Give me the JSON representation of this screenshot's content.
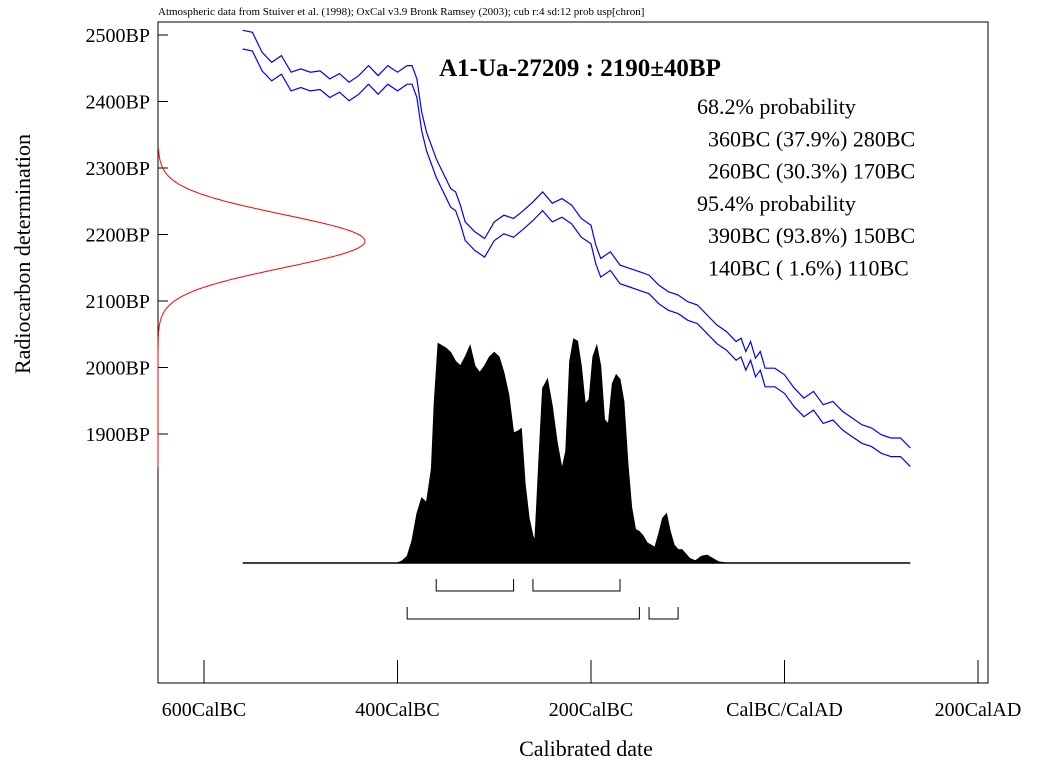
{
  "chart_data": {
    "type": "area",
    "source_note": "Atmospheric data from Stuiver et al. (1998); OxCal v3.9 Bronk Ramsey (2003); cub r:4 sd:12 prob usp[chron]",
    "title": "A1-Ua-27209 : 2190±40BP",
    "xlabel": "Calibrated date",
    "ylabel": "Radiocarbon determination",
    "x_ticks": [
      {
        "value": -600,
        "label": "600CalBC"
      },
      {
        "value": -400,
        "label": "400CalBC"
      },
      {
        "value": -200,
        "label": "200CalBC"
      },
      {
        "value": 0,
        "label": "CalBC/CalAD"
      },
      {
        "value": 200,
        "label": "200CalAD"
      }
    ],
    "y_ticks": [
      {
        "value": 2500,
        "label": "2500BP"
      },
      {
        "value": 2400,
        "label": "2400BP"
      },
      {
        "value": 2300,
        "label": "2300BP"
      },
      {
        "value": 2200,
        "label": "2200BP"
      },
      {
        "value": 2100,
        "label": "2100BP"
      },
      {
        "value": 2000,
        "label": "2000BP"
      },
      {
        "value": 1900,
        "label": "1900BP"
      }
    ],
    "xlim": [
      -650,
      200
    ],
    "ylim": [
      1570,
      2505
    ],
    "colors": {
      "calibration_curve": "#0000ff",
      "measurement": "#ff0000",
      "posterior": "#000000"
    },
    "measurement": {
      "mean": 2190,
      "sd": 40
    },
    "probability_text": [
      "68.2% probability",
      "  360BC (37.9%) 280BC",
      "  260BC (30.3%) 170BC",
      "95.4% probability",
      "  390BC (93.8%) 150BC",
      "  140BC ( 1.6%) 110BC"
    ],
    "ranges_68": [
      [
        -360,
        -280
      ],
      [
        -260,
        -170
      ]
    ],
    "ranges_95": [
      [
        -390,
        -150
      ],
      [
        -140,
        -110
      ]
    ],
    "calibration_curve_mid": [
      [
        -560,
        2493
      ],
      [
        -550,
        2490
      ],
      [
        -540,
        2460
      ],
      [
        -530,
        2445
      ],
      [
        -520,
        2455
      ],
      [
        -510,
        2430
      ],
      [
        -500,
        2435
      ],
      [
        -490,
        2430
      ],
      [
        -480,
        2432
      ],
      [
        -470,
        2420
      ],
      [
        -460,
        2428
      ],
      [
        -450,
        2415
      ],
      [
        -440,
        2425
      ],
      [
        -430,
        2440
      ],
      [
        -420,
        2425
      ],
      [
        -410,
        2440
      ],
      [
        -400,
        2430
      ],
      [
        -390,
        2440
      ],
      [
        -385,
        2440
      ],
      [
        -380,
        2420
      ],
      [
        -375,
        2370
      ],
      [
        -370,
        2340
      ],
      [
        -365,
        2320
      ],
      [
        -360,
        2300
      ],
      [
        -355,
        2285
      ],
      [
        -350,
        2270
      ],
      [
        -345,
        2255
      ],
      [
        -340,
        2250
      ],
      [
        -335,
        2230
      ],
      [
        -330,
        2205
      ],
      [
        -320,
        2190
      ],
      [
        -310,
        2180
      ],
      [
        -300,
        2205
      ],
      [
        -290,
        2215
      ],
      [
        -280,
        2210
      ],
      [
        -270,
        2222
      ],
      [
        -260,
        2235
      ],
      [
        -250,
        2250
      ],
      [
        -240,
        2233
      ],
      [
        -230,
        2240
      ],
      [
        -220,
        2230
      ],
      [
        -210,
        2210
      ],
      [
        -200,
        2200
      ],
      [
        -195,
        2170
      ],
      [
        -190,
        2150
      ],
      [
        -180,
        2160
      ],
      [
        -170,
        2140
      ],
      [
        -160,
        2135
      ],
      [
        -150,
        2130
      ],
      [
        -140,
        2125
      ],
      [
        -130,
        2110
      ],
      [
        -120,
        2100
      ],
      [
        -110,
        2095
      ],
      [
        -100,
        2085
      ],
      [
        -90,
        2080
      ],
      [
        -80,
        2065
      ],
      [
        -70,
        2050
      ],
      [
        -60,
        2040
      ],
      [
        -50,
        2025
      ],
      [
        -45,
        2030
      ],
      [
        -40,
        2010
      ],
      [
        -35,
        2025
      ],
      [
        -30,
        2000
      ],
      [
        -25,
        2010
      ],
      [
        -20,
        1985
      ],
      [
        -10,
        1985
      ],
      [
        0,
        1975
      ],
      [
        10,
        1955
      ],
      [
        20,
        1940
      ],
      [
        30,
        1950
      ],
      [
        40,
        1930
      ],
      [
        50,
        1935
      ],
      [
        60,
        1920
      ],
      [
        70,
        1910
      ],
      [
        80,
        1900
      ],
      [
        90,
        1895
      ],
      [
        100,
        1885
      ],
      [
        110,
        1880
      ],
      [
        120,
        1880
      ],
      [
        130,
        1865
      ]
    ],
    "calibration_curve_halfwidth": 14,
    "posterior": [
      [
        -560,
        0
      ],
      [
        -400,
        0
      ],
      [
        -395,
        0.01
      ],
      [
        -390,
        0.03
      ],
      [
        -385,
        0.1
      ],
      [
        -380,
        0.22
      ],
      [
        -375,
        0.29
      ],
      [
        -370,
        0.27
      ],
      [
        -365,
        0.42
      ],
      [
        -362,
        0.72
      ],
      [
        -358,
        0.98
      ],
      [
        -350,
        0.96
      ],
      [
        -345,
        0.94
      ],
      [
        -340,
        0.9
      ],
      [
        -335,
        0.88
      ],
      [
        -330,
        0.92
      ],
      [
        -325,
        0.97
      ],
      [
        -320,
        0.88
      ],
      [
        -315,
        0.85
      ],
      [
        -310,
        0.88
      ],
      [
        -305,
        0.92
      ],
      [
        -300,
        0.94
      ],
      [
        -295,
        0.92
      ],
      [
        -290,
        0.85
      ],
      [
        -285,
        0.75
      ],
      [
        -280,
        0.58
      ],
      [
        -275,
        0.59
      ],
      [
        -272,
        0.6
      ],
      [
        -268,
        0.35
      ],
      [
        -264,
        0.2
      ],
      [
        -260,
        0.12
      ],
      [
        -258,
        0.1
      ],
      [
        -254,
        0.45
      ],
      [
        -250,
        0.78
      ],
      [
        -245,
        0.82
      ],
      [
        -240,
        0.7
      ],
      [
        -235,
        0.54
      ],
      [
        -230,
        0.42
      ],
      [
        -226,
        0.5
      ],
      [
        -222,
        0.9
      ],
      [
        -218,
        1.0
      ],
      [
        -214,
        0.99
      ],
      [
        -210,
        0.88
      ],
      [
        -206,
        0.71
      ],
      [
        -202,
        0.73
      ],
      [
        -198,
        0.92
      ],
      [
        -194,
        0.97
      ],
      [
        -190,
        0.88
      ],
      [
        -186,
        0.64
      ],
      [
        -182,
        0.62
      ],
      [
        -178,
        0.8
      ],
      [
        -174,
        0.84
      ],
      [
        -170,
        0.82
      ],
      [
        -166,
        0.72
      ],
      [
        -162,
        0.45
      ],
      [
        -158,
        0.25
      ],
      [
        -154,
        0.15
      ],
      [
        -150,
        0.14
      ],
      [
        -146,
        0.12
      ],
      [
        -142,
        0.09
      ],
      [
        -138,
        0.08
      ],
      [
        -134,
        0.07
      ],
      [
        -130,
        0.13
      ],
      [
        -126,
        0.2
      ],
      [
        -122,
        0.22
      ],
      [
        -118,
        0.14
      ],
      [
        -114,
        0.08
      ],
      [
        -110,
        0.06
      ],
      [
        -106,
        0.06
      ],
      [
        -102,
        0.04
      ],
      [
        -98,
        0.02
      ],
      [
        -92,
        0.01
      ],
      [
        -86,
        0.03
      ],
      [
        -80,
        0.035
      ],
      [
        -74,
        0.02
      ],
      [
        -68,
        0.005
      ],
      [
        -60,
        0
      ],
      [
        130,
        0
      ]
    ]
  }
}
